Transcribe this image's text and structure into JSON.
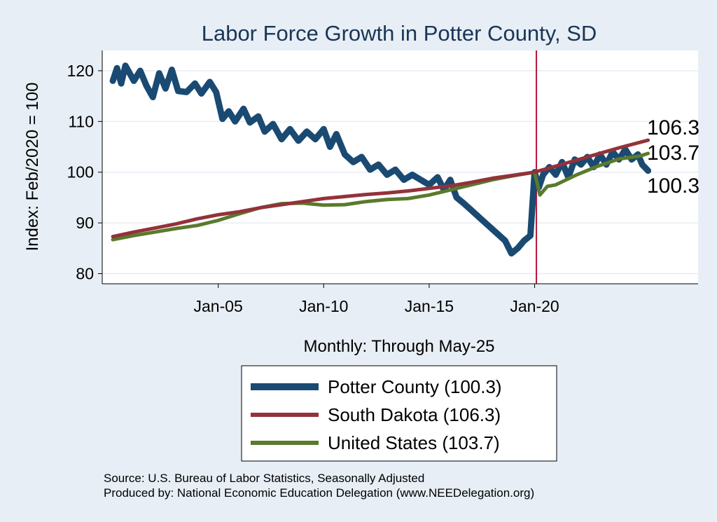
{
  "chart_data": {
    "type": "line",
    "title": "Labor Force Growth in Potter  County, SD",
    "ylabel": "Index: Feb/2020 = 100",
    "xlabel": "Monthly: Through May-25",
    "ylim": [
      78,
      124
    ],
    "yticks": [
      80,
      90,
      100,
      110,
      120
    ],
    "xticks": [
      {
        "label": "Jan-05",
        "year": 2005
      },
      {
        "label": "Jan-10",
        "year": 2010
      },
      {
        "label": "Jan-15",
        "year": 2015
      },
      {
        "label": "Jan-20",
        "year": 2020
      }
    ],
    "xlim": [
      1999.5,
      2027.75
    ],
    "reference_line": {
      "year": 2020.083,
      "color": "#b5173b"
    },
    "grid": true,
    "legend_position": "bottom",
    "series": [
      {
        "name": "Potter  County (100.3)",
        "color": "#1a4a72",
        "end_label": "100.3",
        "points": [
          [
            2000.0,
            118.0
          ],
          [
            2000.2,
            120.5
          ],
          [
            2000.4,
            117.5
          ],
          [
            2000.6,
            121.0
          ],
          [
            2000.8,
            119.5
          ],
          [
            2001.0,
            118.0
          ],
          [
            2001.3,
            120.0
          ],
          [
            2001.6,
            117.0
          ],
          [
            2001.9,
            114.8
          ],
          [
            2002.2,
            119.5
          ],
          [
            2002.5,
            116.5
          ],
          [
            2002.8,
            120.2
          ],
          [
            2003.1,
            116.0
          ],
          [
            2003.5,
            115.8
          ],
          [
            2003.9,
            117.5
          ],
          [
            2004.2,
            115.5
          ],
          [
            2004.6,
            117.8
          ],
          [
            2004.9,
            115.8
          ],
          [
            2005.2,
            110.5
          ],
          [
            2005.5,
            112.0
          ],
          [
            2005.8,
            110.0
          ],
          [
            2006.2,
            112.5
          ],
          [
            2006.5,
            109.8
          ],
          [
            2006.9,
            111.0
          ],
          [
            2007.2,
            108.0
          ],
          [
            2007.6,
            109.5
          ],
          [
            2008.0,
            106.5
          ],
          [
            2008.4,
            108.5
          ],
          [
            2008.8,
            106.2
          ],
          [
            2009.2,
            108.0
          ],
          [
            2009.6,
            106.5
          ],
          [
            2010.0,
            108.5
          ],
          [
            2010.3,
            105.0
          ],
          [
            2010.6,
            107.5
          ],
          [
            2011.0,
            103.5
          ],
          [
            2011.4,
            102.0
          ],
          [
            2011.8,
            103.0
          ],
          [
            2012.2,
            100.5
          ],
          [
            2012.6,
            101.5
          ],
          [
            2013.0,
            99.5
          ],
          [
            2013.4,
            100.5
          ],
          [
            2013.8,
            98.5
          ],
          [
            2014.2,
            99.5
          ],
          [
            2014.6,
            98.5
          ],
          [
            2015.0,
            97.5
          ],
          [
            2015.4,
            99.0
          ],
          [
            2015.7,
            96.5
          ],
          [
            2016.0,
            98.5
          ],
          [
            2016.3,
            95.0
          ],
          [
            2016.6,
            94.0
          ],
          [
            2017.0,
            92.5
          ],
          [
            2017.4,
            91.0
          ],
          [
            2017.8,
            89.5
          ],
          [
            2018.2,
            88.0
          ],
          [
            2018.6,
            86.5
          ],
          [
            2018.9,
            84.0
          ],
          [
            2019.2,
            85.0
          ],
          [
            2019.5,
            86.5
          ],
          [
            2019.8,
            87.5
          ],
          [
            2020.0,
            100.0
          ],
          [
            2020.2,
            97.0
          ],
          [
            2020.4,
            99.5
          ],
          [
            2020.7,
            101.0
          ],
          [
            2021.0,
            99.5
          ],
          [
            2021.3,
            102.0
          ],
          [
            2021.6,
            99.0
          ],
          [
            2021.9,
            102.5
          ],
          [
            2022.2,
            101.5
          ],
          [
            2022.5,
            103.0
          ],
          [
            2022.8,
            101.0
          ],
          [
            2023.1,
            103.5
          ],
          [
            2023.4,
            101.5
          ],
          [
            2023.7,
            104.0
          ],
          [
            2024.0,
            102.5
          ],
          [
            2024.3,
            104.5
          ],
          [
            2024.6,
            102.5
          ],
          [
            2024.9,
            103.5
          ],
          [
            2025.1,
            101.5
          ],
          [
            2025.38,
            100.3
          ]
        ]
      },
      {
        "name": "South Dakota (106.3)",
        "color": "#93323a",
        "end_label": "106.3",
        "points": [
          [
            2000.0,
            87.3
          ],
          [
            2001.0,
            88.2
          ],
          [
            2002.0,
            89.0
          ],
          [
            2003.0,
            89.8
          ],
          [
            2004.0,
            90.8
          ],
          [
            2005.0,
            91.6
          ],
          [
            2006.0,
            92.2
          ],
          [
            2007.0,
            93.0
          ],
          [
            2008.0,
            93.6
          ],
          [
            2009.0,
            94.2
          ],
          [
            2010.0,
            94.8
          ],
          [
            2011.0,
            95.2
          ],
          [
            2012.0,
            95.6
          ],
          [
            2013.0,
            95.9
          ],
          [
            2014.0,
            96.3
          ],
          [
            2015.0,
            96.8
          ],
          [
            2016.0,
            97.3
          ],
          [
            2017.0,
            98.0
          ],
          [
            2018.0,
            98.8
          ],
          [
            2019.0,
            99.4
          ],
          [
            2020.0,
            100.0
          ],
          [
            2021.0,
            101.2
          ],
          [
            2022.0,
            102.4
          ],
          [
            2023.0,
            103.6
          ],
          [
            2024.0,
            104.8
          ],
          [
            2025.38,
            106.3
          ]
        ]
      },
      {
        "name": "United States (103.7)",
        "color": "#5a7a2c",
        "end_label": "103.7",
        "points": [
          [
            2000.0,
            86.7
          ],
          [
            2001.0,
            87.5
          ],
          [
            2002.0,
            88.2
          ],
          [
            2003.0,
            88.9
          ],
          [
            2004.0,
            89.5
          ],
          [
            2005.0,
            90.5
          ],
          [
            2006.0,
            91.8
          ],
          [
            2007.0,
            93.0
          ],
          [
            2008.0,
            93.8
          ],
          [
            2009.0,
            93.9
          ],
          [
            2010.0,
            93.5
          ],
          [
            2011.0,
            93.6
          ],
          [
            2012.0,
            94.2
          ],
          [
            2013.0,
            94.6
          ],
          [
            2014.0,
            94.8
          ],
          [
            2015.0,
            95.5
          ],
          [
            2016.0,
            96.5
          ],
          [
            2017.0,
            97.5
          ],
          [
            2018.0,
            98.5
          ],
          [
            2019.0,
            99.3
          ],
          [
            2020.0,
            100.0
          ],
          [
            2020.25,
            95.5
          ],
          [
            2020.6,
            97.2
          ],
          [
            2021.0,
            97.5
          ],
          [
            2022.0,
            99.5
          ],
          [
            2023.0,
            101.2
          ],
          [
            2024.0,
            102.6
          ],
          [
            2025.0,
            103.2
          ],
          [
            2025.38,
            103.7
          ]
        ]
      }
    ],
    "source_note": "Source: U.S. Bureau of Labor Statistics, Seasonally Adjusted",
    "producer_note": "Produced by: National Economic Education Delegation (www.NEEDelegation.org)"
  }
}
